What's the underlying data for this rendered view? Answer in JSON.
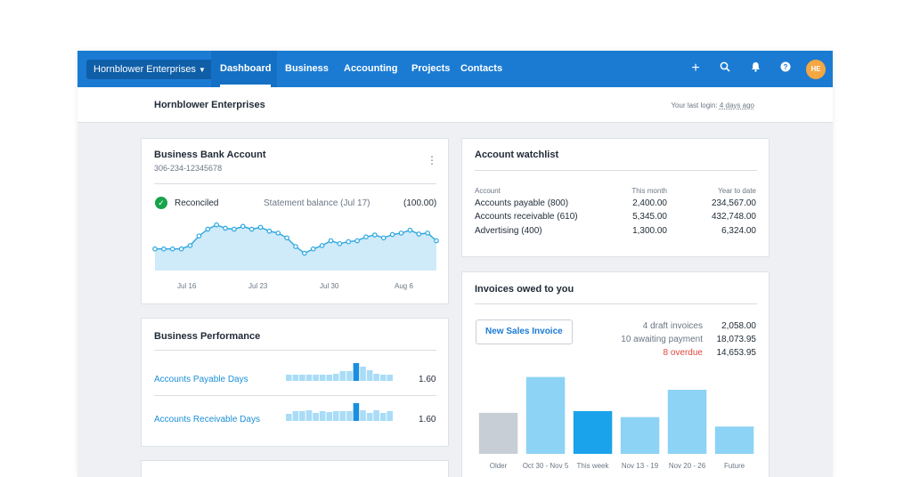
{
  "topbar": {
    "org_name": "Hornblower Enterprises",
    "tabs": [
      {
        "label": "Dashboard",
        "active": true
      },
      {
        "label": "Business",
        "active": false
      },
      {
        "label": "Accounting",
        "active": false
      },
      {
        "label": "Projects",
        "active": false
      },
      {
        "label": "Contacts",
        "active": false
      }
    ],
    "icons": [
      "plus-icon",
      "search-icon",
      "bell-icon",
      "help-icon"
    ],
    "avatar_initials": "HE",
    "colors": {
      "bar": "#1b7bd3",
      "avatar": "#f4a742"
    }
  },
  "subheader": {
    "title": "Hornblower Enterprises",
    "last_login_prefix": "Your last login:",
    "last_login_value": "4 days ago"
  },
  "bank": {
    "title": "Business Bank Account",
    "account_number": "306-234-12345678",
    "status": "Reconciled",
    "statement_label": "Statement balance (Jul 17)",
    "statement_value": "(100.00)",
    "x_labels": [
      "Jul 16",
      "Jul 23",
      "Jul 30",
      "Aug 6"
    ],
    "trend": [
      0.45,
      0.45,
      0.45,
      0.45,
      0.52,
      0.72,
      0.86,
      0.95,
      0.88,
      0.86,
      0.92,
      0.86,
      0.9,
      0.82,
      0.78,
      0.68,
      0.5,
      0.36,
      0.45,
      0.52,
      0.62,
      0.56,
      0.6,
      0.62,
      0.7,
      0.74,
      0.68,
      0.75,
      0.78,
      0.84,
      0.76,
      0.78,
      0.62
    ]
  },
  "performance": {
    "title": "Business Performance",
    "rows": [
      {
        "label": "Accounts Payable Days",
        "value": "1.60",
        "bars": [
          0.35,
          0.35,
          0.35,
          0.35,
          0.35,
          0.35,
          0.35,
          0.4,
          0.55,
          0.55,
          1.0,
          0.8,
          0.6,
          0.4,
          0.35,
          0.35
        ],
        "highlight": 10
      },
      {
        "label": "Accounts Receivable Days",
        "value": "1.60",
        "bars": [
          0.4,
          0.55,
          0.55,
          0.6,
          0.45,
          0.55,
          0.5,
          0.55,
          0.55,
          0.55,
          1.0,
          0.6,
          0.45,
          0.6,
          0.45,
          0.55
        ],
        "highlight": 10
      }
    ]
  },
  "watchlist": {
    "title": "Account watchlist",
    "headers": [
      "Account",
      "This month",
      "Year to date"
    ],
    "rows": [
      [
        "Accounts payable (800)",
        "2,400.00",
        "234,567.00"
      ],
      [
        "Accounts receivable (610)",
        "5,345.00",
        "432,748.00"
      ],
      [
        "Advertising (400)",
        "1,300.00",
        "6,324.00"
      ]
    ]
  },
  "invoices": {
    "title": "Invoices owed to you",
    "new_invoice_label": "New Sales Invoice",
    "summary": [
      {
        "label": "4 draft invoices",
        "value": "2,058.00",
        "overdue": false
      },
      {
        "label": "10 awaiting payment",
        "value": "18,073.95",
        "overdue": false
      },
      {
        "label": "8 overdue",
        "value": "14,653.95",
        "overdue": true
      }
    ],
    "chart_data": {
      "type": "bar",
      "categories": [
        "Older",
        "Oct 30 - Nov 5",
        "This week",
        "Nov 13 - 19",
        "Nov 20 - 26",
        "Future"
      ],
      "values": [
        48,
        90,
        50,
        43,
        75,
        32
      ],
      "colors": [
        "#c8ced5",
        "#8dd3f5",
        "#1aa3ea",
        "#8dd3f5",
        "#8dd3f5",
        "#8dd3f5"
      ],
      "title": "",
      "xlabel": "",
      "ylabel": "",
      "ylim": [
        0,
        100
      ],
      "grid": false
    }
  }
}
